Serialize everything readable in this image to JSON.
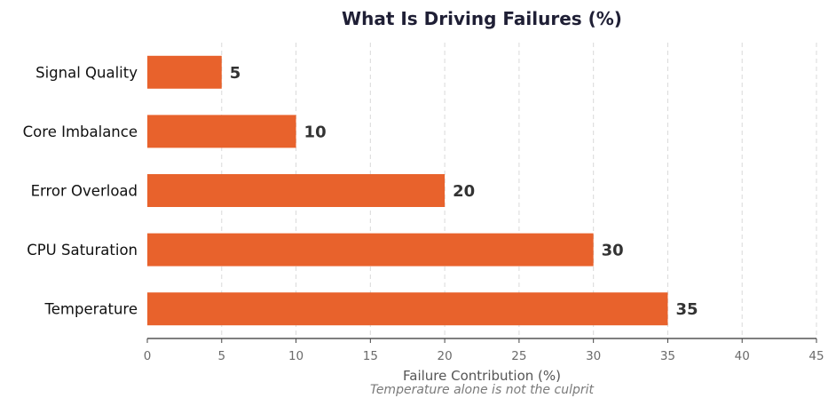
{
  "chart_data": {
    "type": "bar",
    "orientation": "horizontal",
    "title": "What Is Driving Failures (%)",
    "xlabel": "Failure Contribution (%)",
    "ylabel": "",
    "caption": "Temperature alone is not the culprit",
    "categories": [
      "Signal Quality",
      "Core Imbalance",
      "Error Overload",
      "CPU Saturation",
      "Temperature"
    ],
    "values": [
      5,
      10,
      20,
      30,
      35
    ],
    "xlim": [
      0,
      45
    ],
    "xticks": [
      0,
      5,
      10,
      15,
      20,
      25,
      30,
      35,
      40,
      45
    ],
    "grid": "vertical dashed",
    "bar_color": "#e8622c",
    "show_value_labels": true
  }
}
